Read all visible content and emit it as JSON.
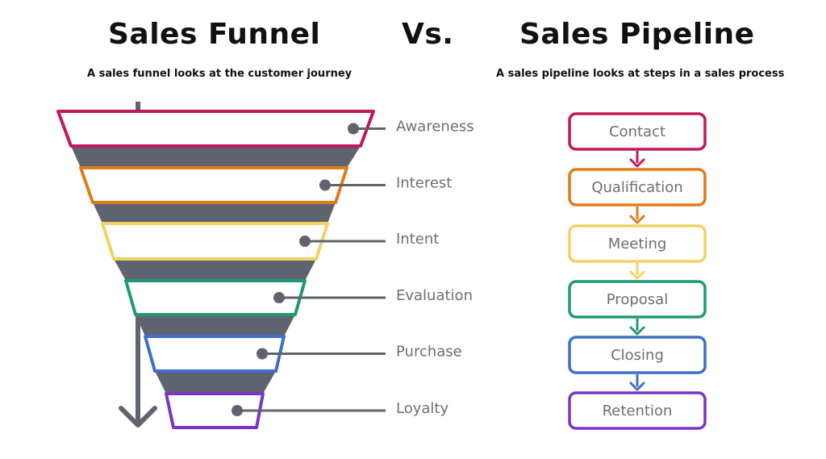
{
  "header": {
    "left_title": "Sales Funnel",
    "vs": "Vs.",
    "right_title": "Sales Pipeline",
    "left_subtitle": "A sales funnel looks at the customer journey",
    "right_subtitle": "A sales pipeline looks at steps in a sales process"
  },
  "funnel": {
    "stages": [
      {
        "label": "Awareness",
        "color": "#c2185b"
      },
      {
        "label": "Interest",
        "color": "#e07b1a"
      },
      {
        "label": "Intent",
        "color": "#f2d267"
      },
      {
        "label": "Evaluation",
        "color": "#1f9a6e"
      },
      {
        "label": "Purchase",
        "color": "#3f6fc9"
      },
      {
        "label": "Loyalty",
        "color": "#7b34c7"
      }
    ],
    "connector_color": "#5f636f"
  },
  "pipeline": {
    "steps": [
      {
        "label": "Contact",
        "color": "#c2185b"
      },
      {
        "label": "Qualification",
        "color": "#e07b1a"
      },
      {
        "label": "Meeting",
        "color": "#f2d267"
      },
      {
        "label": "Proposal",
        "color": "#1f9a6e"
      },
      {
        "label": "Closing",
        "color": "#3f6fc9"
      },
      {
        "label": "Retention",
        "color": "#7b34c7"
      }
    ]
  }
}
